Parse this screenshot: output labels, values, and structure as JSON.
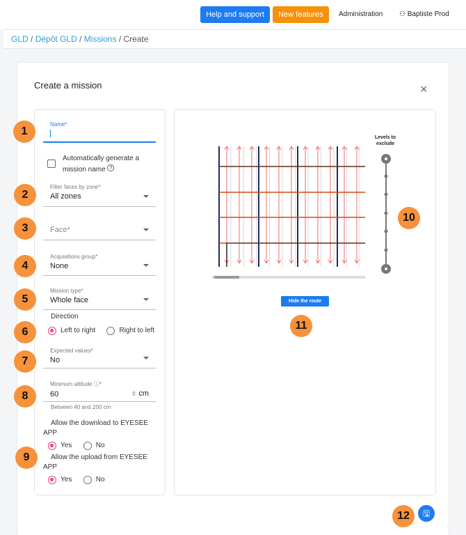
{
  "topbar": {
    "help": "Help and support",
    "new_features": "New features",
    "admin": "Administration",
    "user": "Baptiste Prod",
    "user_icon": "person-icon",
    "help_color": "#1e7cf2",
    "new_color": "#f7910a"
  },
  "breadcrumb": {
    "items": [
      "GLD",
      "Dépôt GLD",
      "Missions"
    ],
    "current": "Create",
    "sep": "/"
  },
  "modal": {
    "title": "Create a mission",
    "close": "×"
  },
  "form": {
    "name": {
      "label": "Name*",
      "value": ""
    },
    "auto_name": {
      "label": "Automatically generate a mission name",
      "checked": false,
      "help": "?"
    },
    "zone": {
      "label": "Filter faces by zone*",
      "value": "All zones"
    },
    "face": {
      "placeholder": "Face*"
    },
    "acq_group": {
      "label": "Acquisitions group*",
      "value": "None"
    },
    "mission_type": {
      "label": "Mission type*",
      "value": "Whole face"
    },
    "direction": {
      "label": "Direction",
      "options": [
        "Left to right",
        "Right to left"
      ],
      "selected": "Left to right"
    },
    "expected": {
      "label": "Expected values*",
      "value": "No"
    },
    "altitude": {
      "label": "Minimum altitude",
      "required": "*",
      "value": "60",
      "unit": "cm",
      "hint": "Between 40 and 200 cm"
    },
    "download": {
      "label": "Allow the download to EYESEE APP",
      "options": [
        "Yes",
        "No"
      ],
      "selected": "Yes"
    },
    "upload": {
      "label": "Allow the upload from EYESEE APP",
      "options": [
        "Yes",
        "No"
      ],
      "selected": "Yes"
    }
  },
  "preview": {
    "levels_label": "Levels to exclude",
    "hide_route": "Hide the route",
    "hide_color": "#1e7cf2"
  },
  "badges": [
    "1",
    "2",
    "3",
    "4",
    "5",
    "6",
    "7",
    "8",
    "9",
    "10",
    "11",
    "12"
  ],
  "save_icon": "save-icon"
}
